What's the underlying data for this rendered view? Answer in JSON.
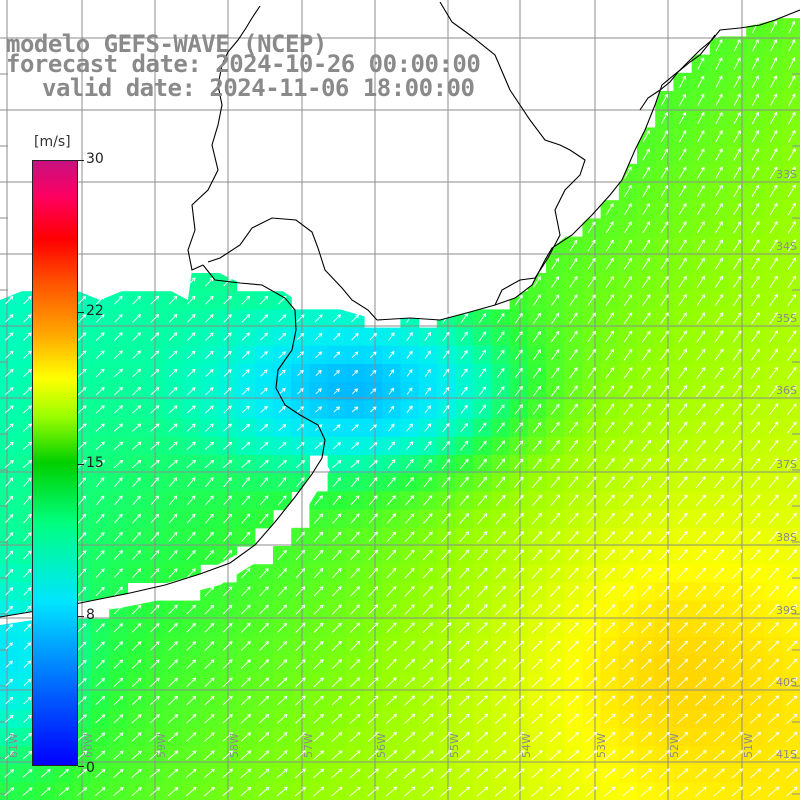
{
  "title": {
    "line1": "modelo GEFS-WAVE (NCEP)",
    "line2": "forecast date: 2024-10-26 00:00:00",
    "line3": "valid date: 2024-11-06 18:00:00"
  },
  "colorbar": {
    "unit": "[m/s]",
    "ticks": [
      "30",
      "22",
      "15",
      "8",
      "0"
    ],
    "tick_values": [
      30,
      22,
      15,
      8,
      0
    ],
    "min": 0,
    "max": 30
  },
  "lat_labels": [
    "33S",
    "34S",
    "35S",
    "36S",
    "37S",
    "38S",
    "39S",
    "40S",
    "41S"
  ],
  "lon_labels": [
    "61W",
    "60W",
    "59W",
    "58W",
    "57W",
    "56W",
    "55W",
    "54W",
    "53W",
    "52W",
    "51W"
  ],
  "colors": {
    "land": "#ffffff",
    "coastline": "#000000",
    "grid": "#8c8c8c",
    "arrow": "#ffffff",
    "title": "#8a8a8a"
  },
  "field": {
    "variable": "wind speed",
    "arrows": "wind direction"
  }
}
